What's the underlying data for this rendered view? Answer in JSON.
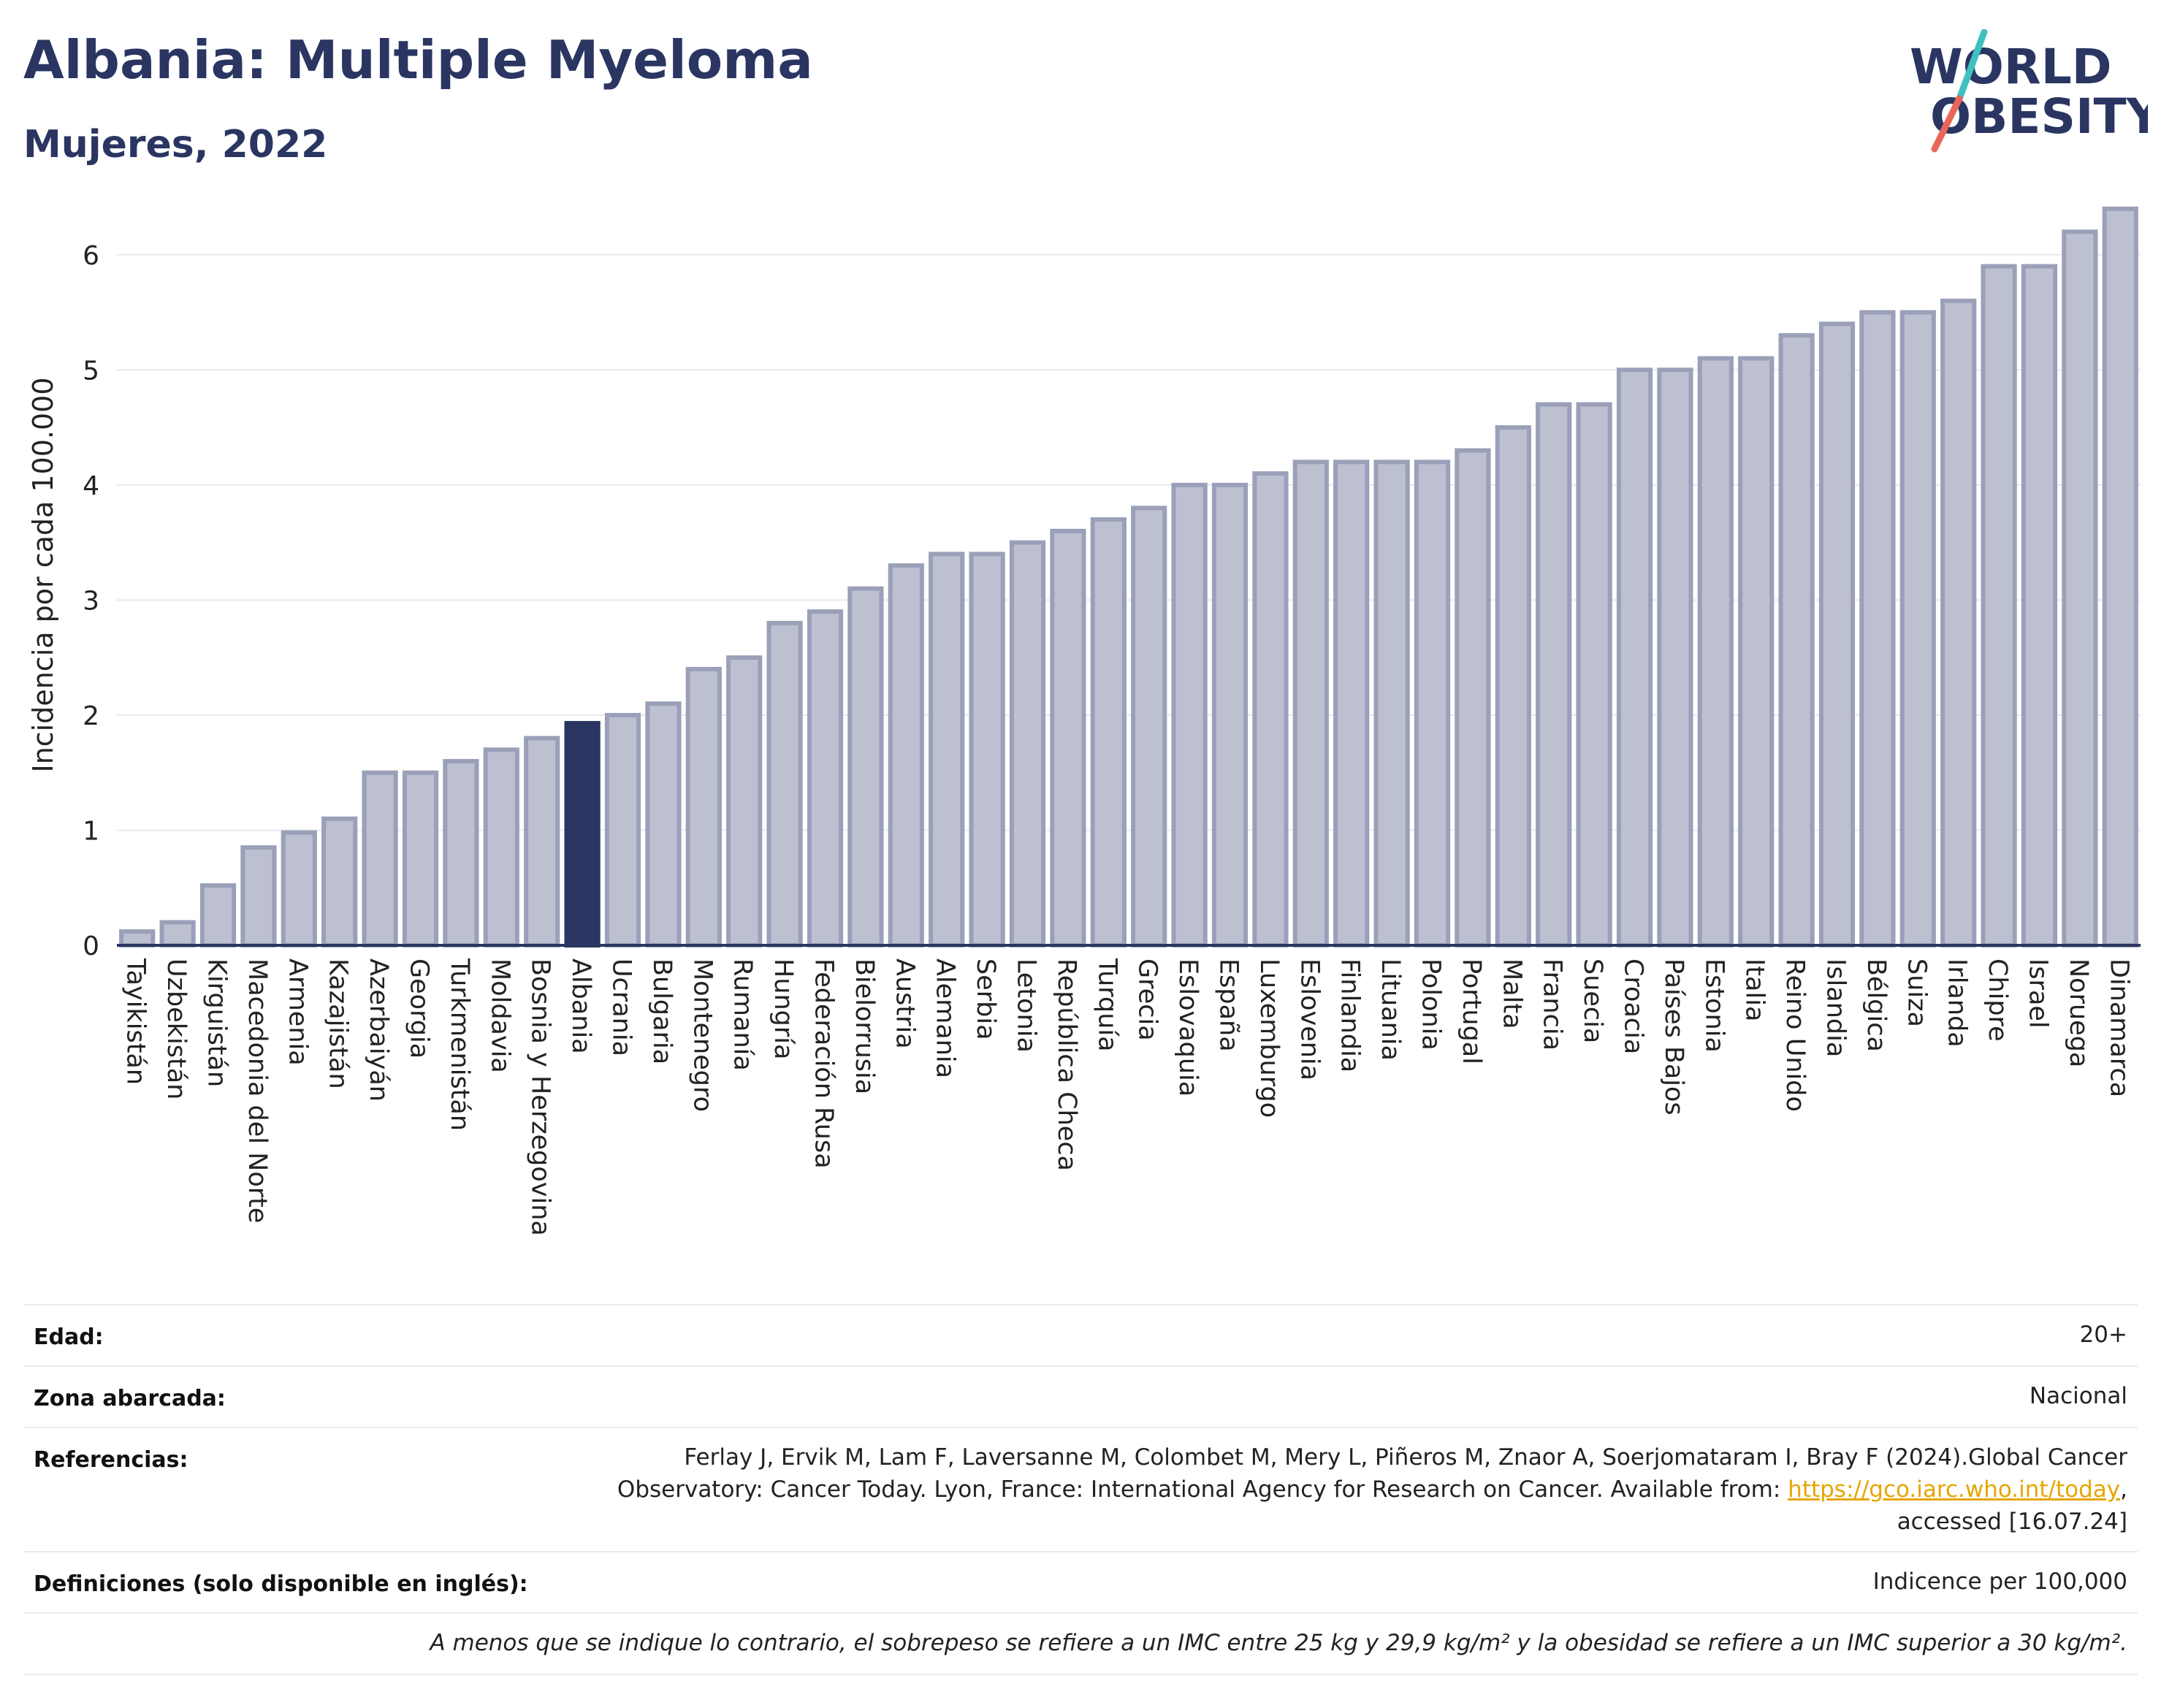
{
  "header": {
    "title": "Albania: Multiple Myeloma",
    "subtitle": "Mujeres, 2022",
    "logo_line1": "WORLD",
    "logo_line2": "OBESITY"
  },
  "colors": {
    "bar": "#bcc0d0",
    "bar_stroke": "#9aa0b8",
    "highlight": "#2a3562",
    "grid": "#e6e8ee",
    "logo_teal": "#3fc1c0",
    "logo_coral": "#e8675a"
  },
  "chart_data": {
    "type": "bar",
    "ylabel": "Incidencia por cada 100.000",
    "ylim": [
      0,
      6.5
    ],
    "yticks": [
      0,
      1,
      2,
      3,
      4,
      5,
      6
    ],
    "grid": true,
    "highlight": "Albania",
    "categories": [
      "Tayikistán",
      "Uzbekistán",
      "Kirguistán",
      "Macedonia del Norte",
      "Armenia",
      "Kazajistán",
      "Azerbaiyán",
      "Georgia",
      "Turkmenistán",
      "Moldavia",
      "Bosnia y Herzegovina",
      "Albania",
      "Ucrania",
      "Bulgaria",
      "Montenegro",
      "Rumanía",
      "Hungría",
      "Federación Rusa",
      "Bielorrusia",
      "Austria",
      "Alemania",
      "Serbia",
      "Letonia",
      "República Checa",
      "Turquía",
      "Grecia",
      "Eslovaquia",
      "España",
      "Luxemburgo",
      "Eslovenia",
      "Finlandia",
      "Lituania",
      "Polonia",
      "Portugal",
      "Malta",
      "Francia",
      "Suecia",
      "Croacia",
      "Países Bajos",
      "Estonia",
      "Italia",
      "Reino Unido",
      "Islandia",
      "Bélgica",
      "Suiza",
      "Irlanda",
      "Chipre",
      "Israel",
      "Noruega",
      "Dinamarca"
    ],
    "values": [
      0.12,
      0.2,
      0.52,
      0.85,
      0.98,
      1.1,
      1.5,
      1.5,
      1.6,
      1.7,
      1.8,
      1.93,
      2.0,
      2.1,
      2.4,
      2.5,
      2.8,
      2.9,
      3.1,
      3.3,
      3.4,
      3.4,
      3.5,
      3.6,
      3.7,
      3.8,
      4.0,
      4.0,
      4.1,
      4.2,
      4.2,
      4.2,
      4.2,
      4.3,
      4.5,
      4.7,
      4.7,
      5.0,
      5.0,
      5.1,
      5.1,
      5.3,
      5.4,
      5.5,
      5.5,
      5.6,
      5.9,
      5.9,
      6.2,
      6.4
    ]
  },
  "meta": {
    "age_label": "Edad:",
    "age_value": "20+",
    "zone_label": "Zona abarcada:",
    "zone_value": "Nacional",
    "refs_label": "Referencias:",
    "refs_line1": "Ferlay J, Ervik M, Lam F, Laversanne M, Colombet M, Mery L, Piñeros M, Znaor A, Soerjomataram I, Bray F (2024).Global Cancer",
    "refs_line2_pre": "Observatory: Cancer Today. Lyon, France: International Agency for Research on Cancer. Available from: ",
    "refs_link": "https://gco.iarc.who.int/today",
    "refs_line2_post": ",",
    "refs_line3": "accessed [16.07.24]",
    "defs_label": "Definiciones (solo disponible en inglés):",
    "defs_value": "Indicence per 100,000",
    "footnote": "A menos que se indique lo contrario, el sobrepeso se refiere a un IMC entre 25 kg y 29,9 kg/m² y la obesidad se refiere a un IMC superior a 30 kg/m²."
  }
}
